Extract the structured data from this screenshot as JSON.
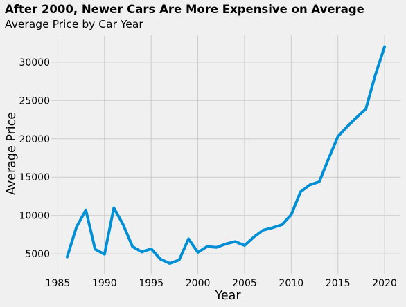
{
  "chart_data": {
    "type": "line",
    "title": "After 2000, Newer Cars Are More Expensive on Average",
    "subtitle": "Average Price by Car Year",
    "xlabel": "Year",
    "ylabel": "Average Price",
    "xlim": [
      1984.3,
      2021.7
    ],
    "ylim": [
      2400,
      33500
    ],
    "xticks": [
      1985,
      1990,
      1995,
      2000,
      2005,
      2010,
      2015,
      2020
    ],
    "yticks": [
      5000,
      10000,
      15000,
      20000,
      25000,
      30000
    ],
    "grid": true,
    "line_color": "#008fd5",
    "background_color": "#f0f0f0",
    "grid_color": "#cbcbcb",
    "x": [
      1986,
      1987,
      1988,
      1989,
      1990,
      1991,
      1992,
      1993,
      1994,
      1995,
      1996,
      1997,
      1998,
      1999,
      2000,
      2001,
      2002,
      2003,
      2004,
      2005,
      2006,
      2007,
      2008,
      2009,
      2010,
      2011,
      2012,
      2013,
      2014,
      2015,
      2016,
      2017,
      2018,
      2019,
      2020
    ],
    "y": [
      4600,
      8500,
      10700,
      5600,
      4950,
      11000,
      8800,
      5950,
      5250,
      5650,
      4300,
      3750,
      4200,
      6950,
      5200,
      5950,
      5850,
      6300,
      6600,
      6100,
      7200,
      8100,
      8400,
      8800,
      10100,
      13100,
      14000,
      14400,
      17400,
      20300,
      21600,
      22800,
      23900,
      28300,
      32000
    ]
  }
}
